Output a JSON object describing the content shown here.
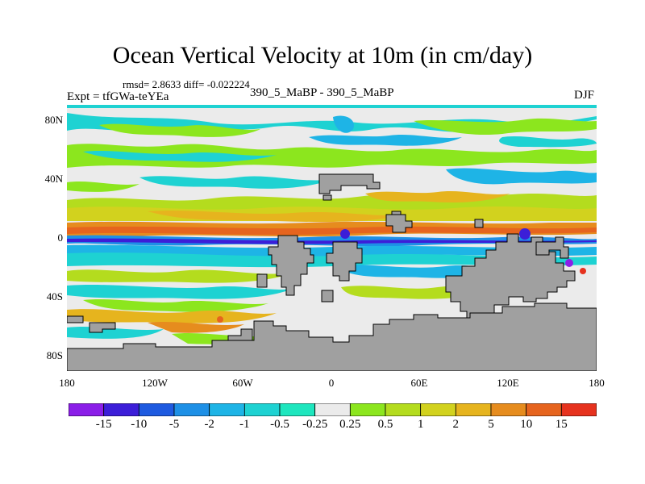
{
  "title": "Ocean Vertical Velocity at 10m (in cm/day)",
  "stats": "rmsd= 2.8633 diff= -0.022224",
  "expt": "Expt = tfGWa-teYEa",
  "subtitle": "390_5_MaBP - 390_5_MaBP",
  "season": "DJF",
  "y_ticks": [
    "80N",
    "40N",
    "0",
    "40S",
    "80S"
  ],
  "x_ticks": [
    "180",
    "120W",
    "60W",
    "0",
    "60E",
    "120E",
    "180"
  ],
  "colorbar": {
    "labels": [
      "-15",
      "-10",
      "-5",
      "-2",
      "-1",
      "-0.5",
      "-0.25",
      "0.25",
      "0.5",
      "1",
      "2",
      "5",
      "10",
      "15"
    ],
    "colors": [
      "#8b1ee8",
      "#3c1ed8",
      "#1e5ae0",
      "#1e90e6",
      "#1eb4e6",
      "#1ed2d2",
      "#1ee6be",
      "#ebebeb",
      "#8ce61e",
      "#b4dc1e",
      "#d2d21e",
      "#e6b41e",
      "#e68c1e",
      "#e6641e",
      "#e6321e"
    ]
  },
  "land_color": "#a0a0a0"
}
